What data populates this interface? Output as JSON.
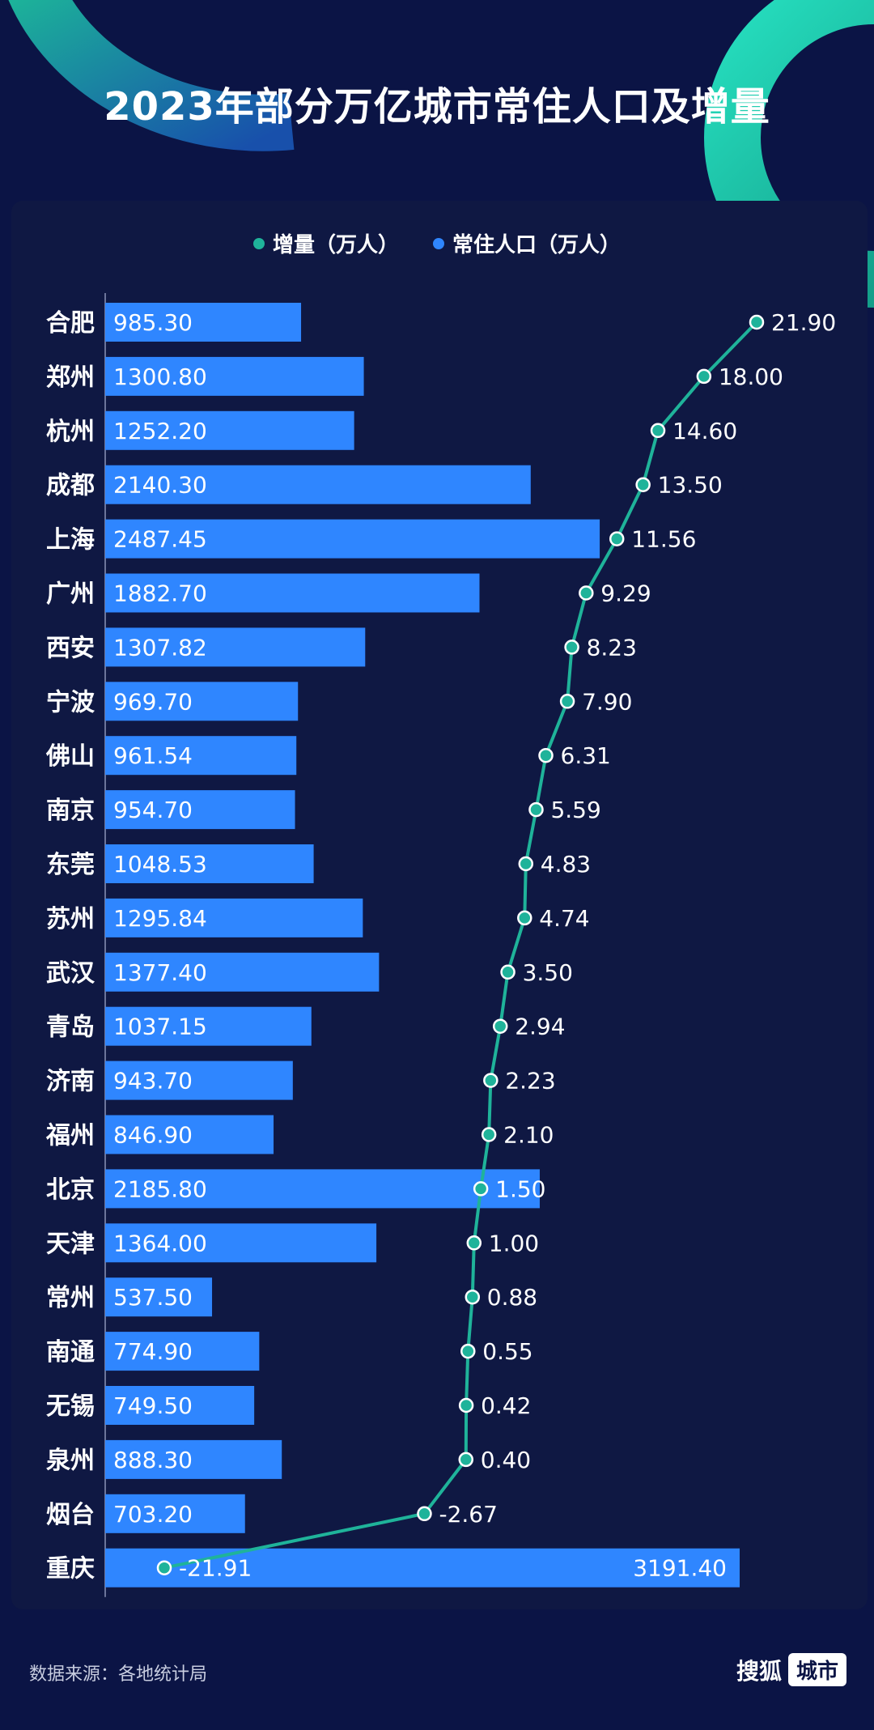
{
  "title": "2023年部分万亿城市常住人口及增量",
  "legend": {
    "increase_label": "增量（万人）",
    "population_label": "常住人口（万人）",
    "increase_color": "#1fb39a",
    "population_color": "#2f86ff"
  },
  "footer": {
    "source": "数据来源：各地统计局",
    "brand": "搜狐",
    "brand_badge": "城市"
  },
  "colors": {
    "background": "#0b1445",
    "bar": "#2f86ff",
    "line": "#1fb39a",
    "text": "#ffffff"
  },
  "chart_data": {
    "type": "bar",
    "orientation": "horizontal",
    "categories": [
      "合肥",
      "郑州",
      "杭州",
      "成都",
      "上海",
      "广州",
      "西安",
      "宁波",
      "佛山",
      "南京",
      "东莞",
      "苏州",
      "武汉",
      "青岛",
      "济南",
      "福州",
      "北京",
      "天津",
      "常州",
      "南通",
      "无锡",
      "泉州",
      "烟台",
      "重庆"
    ],
    "series": [
      {
        "name": "常住人口（万人）",
        "type": "bar",
        "values": [
          985.3,
          1300.8,
          1252.2,
          2140.3,
          2487.45,
          1882.7,
          1307.82,
          969.7,
          961.54,
          954.7,
          1048.53,
          1295.84,
          1377.4,
          1037.15,
          943.7,
          846.9,
          2185.8,
          1364.0,
          537.5,
          774.9,
          749.5,
          888.3,
          703.2,
          3191.4
        ]
      },
      {
        "name": "增量（万人）",
        "type": "line",
        "values": [
          21.9,
          18.0,
          14.6,
          13.5,
          11.56,
          9.29,
          8.23,
          7.9,
          6.31,
          5.59,
          4.83,
          4.74,
          3.5,
          2.94,
          2.23,
          2.1,
          1.5,
          1.0,
          0.88,
          0.55,
          0.42,
          0.4,
          -2.67,
          -21.91
        ]
      }
    ],
    "value_labels_population": [
      "985.30",
      "1300.80",
      "1252.20",
      "2140.30",
      "2487.45",
      "1882.70",
      "1307.82",
      "969.70",
      "961.54",
      "954.70",
      "1048.53",
      "1295.84",
      "1377.40",
      "1037.15",
      "943.70",
      "846.90",
      "2185.80",
      "1364.00",
      "537.50",
      "774.90",
      "749.50",
      "888.30",
      "703.20",
      "3191.40"
    ],
    "value_labels_increase": [
      "21.90",
      "18.00",
      "14.60",
      "13.50",
      "11.56",
      "9.29",
      "8.23",
      "7.90",
      "6.31",
      "5.59",
      "4.83",
      "4.74",
      "3.50",
      "2.94",
      "2.23",
      "2.10",
      "1.50",
      "1.00",
      "0.88",
      "0.55",
      "0.42",
      "0.40",
      "-2.67",
      "-21.91"
    ],
    "population_xlim": [
      0,
      3191.4
    ],
    "increase_xlim": [
      -21.91,
      21.9
    ],
    "grid": false,
    "legend_position": "top-center"
  }
}
